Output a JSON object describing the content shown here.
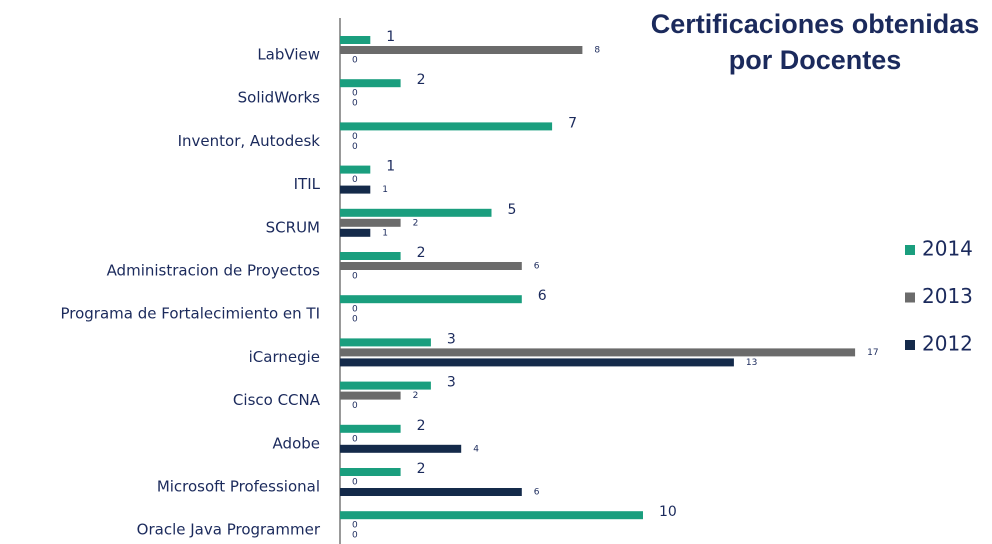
{
  "chart_data": {
    "type": "bar",
    "orientation": "horizontal",
    "title": "Certificaciones obtenidas por Docentes",
    "categories": [
      "LabView",
      "SolidWorks",
      "Inventor, Autodesk",
      "ITIL",
      "SCRUM",
      "Administracion de Proyectos",
      "Programa de Fortalecimiento en TI",
      "iCarnegie",
      "Cisco CCNA",
      "Adobe",
      "Microsoft Professional",
      "Oracle Java Programmer"
    ],
    "series": [
      {
        "name": "2014",
        "color": "#1a9e7e",
        "values": [
          1,
          2,
          7,
          1,
          5,
          2,
          6,
          3,
          3,
          2,
          2,
          10
        ]
      },
      {
        "name": "2013",
        "color": "#6b6b6b",
        "values": [
          8,
          0,
          0,
          0,
          2,
          6,
          0,
          17,
          2,
          0,
          0,
          0
        ]
      },
      {
        "name": "2012",
        "color": "#142a4a",
        "values": [
          0,
          0,
          0,
          1,
          1,
          0,
          0,
          13,
          0,
          4,
          6,
          0
        ]
      }
    ],
    "legend": "right"
  }
}
